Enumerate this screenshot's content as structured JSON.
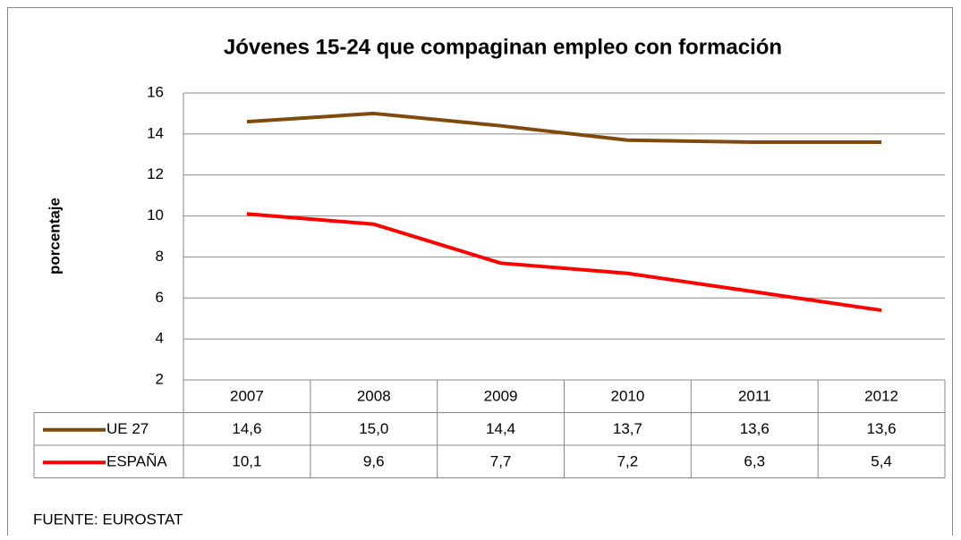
{
  "chart_data": {
    "type": "line",
    "title": "Jóvenes 15-24  que compaginan empleo con formación",
    "y_label": "porcentaje",
    "source": "FUENTE: EUROSTAT",
    "categories": [
      "2007",
      "2008",
      "2009",
      "2010",
      "2011",
      "2012"
    ],
    "series": [
      {
        "name": "UE 27",
        "color": "#7f4a0c",
        "values": [
          14.6,
          15.0,
          14.4,
          13.7,
          13.6,
          13.6
        ],
        "value_labels": [
          "14,6",
          "15,0",
          "14,4",
          "13,7",
          "13,6",
          "13,6"
        ]
      },
      {
        "name": "ESPAÑA",
        "color": "#ff0000",
        "values": [
          10.1,
          9.6,
          7.7,
          7.2,
          6.3,
          5.4
        ],
        "value_labels": [
          "10,1",
          "9,6",
          "7,7",
          "7,2",
          "6,3",
          "5,4"
        ]
      }
    ],
    "ylim": [
      2,
      16
    ],
    "yticks": [
      2,
      4,
      6,
      8,
      10,
      12,
      14,
      16
    ],
    "grid": true
  }
}
